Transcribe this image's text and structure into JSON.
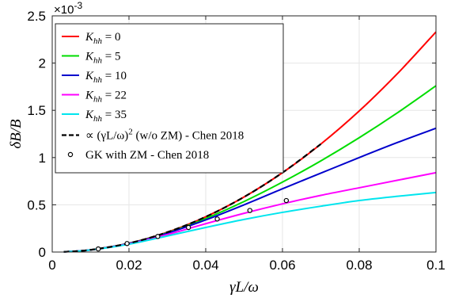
{
  "chart_data": {
    "type": "line",
    "xlabel": "γL/ω",
    "ylabel": "δB/B",
    "y_multiplier": "×10-3",
    "xlim": [
      0,
      0.1
    ],
    "ylim": [
      0,
      2.5
    ],
    "x_ticks": [
      "0",
      "0.02",
      "0.04",
      "0.06",
      "0.08",
      "0.1"
    ],
    "y_ticks": [
      "0",
      "0.5",
      "1",
      "1.5",
      "2",
      "2.5"
    ],
    "grid": true,
    "legend_position": "top-left",
    "x": [
      0.003,
      0.01,
      0.02,
      0.03,
      0.04,
      0.05,
      0.06,
      0.07,
      0.08,
      0.09,
      0.1
    ],
    "series": [
      {
        "name": "K_hh = 0",
        "legend": "Khh = 0",
        "color": "#ff0000",
        "style": "solid",
        "values": [
          0.002,
          0.023,
          0.093,
          0.21,
          0.373,
          0.583,
          0.84,
          1.143,
          1.493,
          1.89,
          2.33
        ]
      },
      {
        "name": "K_hh = 5",
        "legend": "Khh = 5",
        "color": "#00dd00",
        "style": "solid",
        "values": [
          0.002,
          0.023,
          0.092,
          0.205,
          0.355,
          0.535,
          0.74,
          0.965,
          1.21,
          1.475,
          1.76
        ]
      },
      {
        "name": "K_hh = 10",
        "legend": "Khh = 10",
        "color": "#0000cc",
        "style": "solid",
        "values": [
          0.002,
          0.023,
          0.091,
          0.2,
          0.34,
          0.5,
          0.67,
          0.835,
          1.0,
          1.16,
          1.31
        ]
      },
      {
        "name": "K_hh = 22",
        "legend": "Khh = 22",
        "color": "#ff00ff",
        "style": "solid",
        "values": [
          0.002,
          0.022,
          0.087,
          0.185,
          0.3,
          0.41,
          0.51,
          0.6,
          0.68,
          0.76,
          0.84
        ]
      },
      {
        "name": "K_hh = 35",
        "legend": "Khh = 35",
        "color": "#00e5ee",
        "style": "solid",
        "values": [
          0.002,
          0.022,
          0.083,
          0.17,
          0.26,
          0.345,
          0.42,
          0.485,
          0.545,
          0.59,
          0.63
        ]
      }
    ],
    "dashed_series": {
      "name": "∝ (γL/ω)2 (w/o ZM) - Chen 2018",
      "legend_main": "∝ (γL/ω)",
      "legend_sup": "2",
      "legend_tail": " (w/o ZM) - Chen 2018",
      "color": "#000000",
      "x": [
        0.003,
        0.01,
        0.02,
        0.03,
        0.04,
        0.05,
        0.06,
        0.07
      ],
      "values": [
        0.002,
        0.023,
        0.093,
        0.21,
        0.373,
        0.583,
        0.84,
        1.143
      ]
    },
    "marker_series": {
      "name": "GK with ZM - Chen 2018",
      "legend": "GK with ZM - Chen 2018",
      "marker": "open-circle",
      "color": "#000000",
      "x": [
        0.012,
        0.0195,
        0.0275,
        0.0355,
        0.043,
        0.0515,
        0.061
      ],
      "values": [
        0.033,
        0.09,
        0.165,
        0.26,
        0.35,
        0.44,
        0.545
      ]
    }
  }
}
